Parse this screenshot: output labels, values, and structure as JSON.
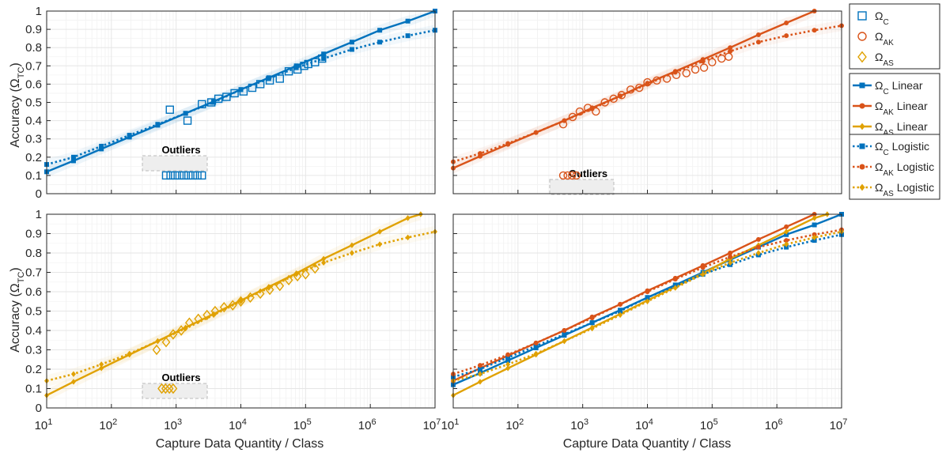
{
  "figure": {
    "xlabel": "Capture Data Quantity / Class",
    "ylabel_main": "Accuracy (Ω",
    "ylabel_sub": "TC",
    "ylabel_close": ")",
    "outliers_label": "Outliers",
    "colors": {
      "C": "#0072BD",
      "AK": "#D95319",
      "AS": "#E0A100",
      "grid": "#e6e6e6",
      "axis": "#262626"
    }
  },
  "chart_data": [
    {
      "type": "scatter",
      "panel": "top-left",
      "xscale": "log",
      "xlim": [
        10,
        10000000
      ],
      "ylim": [
        0,
        1
      ],
      "xticks": [
        {
          "base": "10",
          "exp": "1"
        },
        {
          "base": "10",
          "exp": "2"
        },
        {
          "base": "10",
          "exp": "3"
        },
        {
          "base": "10",
          "exp": "4"
        },
        {
          "base": "10",
          "exp": "5"
        },
        {
          "base": "10",
          "exp": "6"
        },
        {
          "base": "10",
          "exp": "7"
        }
      ],
      "yticks": [
        "0",
        "0.1",
        "0.2",
        "0.3",
        "0.4",
        "0.5",
        "0.6",
        "0.7",
        "0.8",
        "0.9",
        "1"
      ],
      "series": [
        {
          "name": "ΩC",
          "kind": "observed",
          "color": "#0072BD",
          "x": [
            800,
            1500,
            2500,
            3500,
            4500,
            6000,
            8000,
            11000,
            15000,
            20000,
            28000,
            40000,
            55000,
            75000,
            95000,
            110000,
            140000,
            180000
          ],
          "y": [
            0.46,
            0.4,
            0.49,
            0.5,
            0.52,
            0.53,
            0.55,
            0.56,
            0.58,
            0.6,
            0.62,
            0.63,
            0.67,
            0.68,
            0.7,
            0.71,
            0.72,
            0.74
          ]
        },
        {
          "name": "ΩC Linear",
          "kind": "linear",
          "color": "#0072BD",
          "x": [
            10,
            26,
            70,
            190,
            520,
            1400,
            3800,
            10000,
            27000,
            72000,
            190000,
            520000,
            1400000,
            3800000,
            10000000
          ],
          "y": [
            0.12,
            0.18,
            0.245,
            0.31,
            0.375,
            0.44,
            0.505,
            0.57,
            0.635,
            0.7,
            0.765,
            0.83,
            0.895,
            0.945,
            1.0
          ]
        },
        {
          "name": "ΩC Logistic",
          "kind": "logistic",
          "color": "#0072BD",
          "x": [
            10,
            26,
            70,
            190,
            520,
            1400,
            3800,
            10000,
            27000,
            72000,
            190000,
            520000,
            1400000,
            3800000,
            10000000
          ],
          "y": [
            0.16,
            0.2,
            0.26,
            0.32,
            0.38,
            0.44,
            0.5,
            0.57,
            0.63,
            0.69,
            0.74,
            0.79,
            0.83,
            0.865,
            0.895
          ]
        }
      ],
      "outliers": {
        "x_range": [
          700,
          2500
        ],
        "y": 0.1
      }
    },
    {
      "type": "scatter",
      "panel": "top-right",
      "xscale": "log",
      "xlim": [
        10,
        10000000
      ],
      "ylim": [
        0,
        1
      ],
      "xticks": [
        {
          "base": "10",
          "exp": "1"
        },
        {
          "base": "10",
          "exp": "2"
        },
        {
          "base": "10",
          "exp": "3"
        },
        {
          "base": "10",
          "exp": "4"
        },
        {
          "base": "10",
          "exp": "5"
        },
        {
          "base": "10",
          "exp": "6"
        },
        {
          "base": "10",
          "exp": "7"
        }
      ],
      "series": [
        {
          "name": "ΩAK",
          "kind": "observed",
          "color": "#D95319",
          "x": [
            500,
            700,
            900,
            1200,
            1600,
            2200,
            3000,
            4000,
            5500,
            7500,
            10000,
            14000,
            20000,
            28000,
            40000,
            55000,
            75000,
            100000,
            140000,
            180000
          ],
          "y": [
            0.38,
            0.42,
            0.45,
            0.47,
            0.45,
            0.5,
            0.52,
            0.54,
            0.57,
            0.58,
            0.61,
            0.62,
            0.63,
            0.65,
            0.66,
            0.68,
            0.69,
            0.72,
            0.74,
            0.75
          ]
        },
        {
          "name": "ΩAK Linear",
          "kind": "linear",
          "color": "#D95319",
          "x": [
            10,
            26,
            70,
            190,
            520,
            1400,
            3800,
            10000,
            27000,
            72000,
            190000,
            520000,
            1400000,
            3800000
          ],
          "y": [
            0.14,
            0.205,
            0.27,
            0.335,
            0.4,
            0.47,
            0.535,
            0.605,
            0.67,
            0.735,
            0.8,
            0.87,
            0.935,
            1.0
          ]
        },
        {
          "name": "ΩAK Logistic",
          "kind": "logistic",
          "color": "#D95319",
          "x": [
            10,
            26,
            70,
            190,
            520,
            1400,
            3800,
            10000,
            27000,
            72000,
            190000,
            520000,
            1400000,
            3800000,
            10000000
          ],
          "y": [
            0.175,
            0.22,
            0.275,
            0.335,
            0.4,
            0.465,
            0.535,
            0.6,
            0.665,
            0.725,
            0.78,
            0.83,
            0.865,
            0.895,
            0.92
          ]
        }
      ],
      "outliers": {
        "x_range": [
          500,
          800
        ],
        "y": 0.1
      }
    },
    {
      "type": "scatter",
      "panel": "bottom-left",
      "xscale": "log",
      "xlim": [
        10,
        10000000
      ],
      "ylim": [
        0,
        1
      ],
      "xticks": [
        {
          "base": "10",
          "exp": "1"
        },
        {
          "base": "10",
          "exp": "2"
        },
        {
          "base": "10",
          "exp": "3"
        },
        {
          "base": "10",
          "exp": "4"
        },
        {
          "base": "10",
          "exp": "5"
        },
        {
          "base": "10",
          "exp": "6"
        },
        {
          "base": "10",
          "exp": "7"
        }
      ],
      "yticks": [
        "0",
        "0.1",
        "0.2",
        "0.3",
        "0.4",
        "0.5",
        "0.6",
        "0.7",
        "0.8",
        "0.9",
        "1"
      ],
      "series": [
        {
          "name": "ΩAS",
          "kind": "observed",
          "color": "#E0A100",
          "x": [
            500,
            700,
            900,
            1200,
            1600,
            2200,
            3000,
            4000,
            5500,
            7500,
            10000,
            14000,
            20000,
            28000,
            40000,
            55000,
            75000,
            100000,
            140000
          ],
          "y": [
            0.3,
            0.34,
            0.38,
            0.4,
            0.44,
            0.46,
            0.48,
            0.5,
            0.52,
            0.53,
            0.55,
            0.57,
            0.59,
            0.61,
            0.63,
            0.66,
            0.68,
            0.69,
            0.72
          ]
        },
        {
          "name": "ΩAS Linear",
          "kind": "linear",
          "color": "#E0A100",
          "x": [
            10,
            26,
            70,
            190,
            520,
            1400,
            3800,
            10000,
            27000,
            72000,
            190000,
            520000,
            1400000,
            3800000,
            6000000
          ],
          "y": [
            0.065,
            0.135,
            0.205,
            0.275,
            0.345,
            0.415,
            0.485,
            0.555,
            0.625,
            0.695,
            0.77,
            0.84,
            0.91,
            0.98,
            1.0
          ]
        },
        {
          "name": "ΩAS Logistic",
          "kind": "logistic",
          "color": "#E0A100",
          "x": [
            10,
            26,
            70,
            190,
            520,
            1400,
            3800,
            10000,
            27000,
            72000,
            190000,
            520000,
            1400000,
            3800000,
            10000000
          ],
          "y": [
            0.14,
            0.175,
            0.225,
            0.28,
            0.345,
            0.41,
            0.48,
            0.55,
            0.62,
            0.69,
            0.75,
            0.8,
            0.845,
            0.88,
            0.91
          ]
        }
      ],
      "outliers": {
        "x_range": [
          600,
          900
        ],
        "y": 0.1
      }
    },
    {
      "type": "line",
      "panel": "bottom-right",
      "xscale": "log",
      "xlim": [
        10,
        10000000
      ],
      "ylim": [
        0,
        1
      ],
      "xticks": [
        {
          "base": "10",
          "exp": "1"
        },
        {
          "base": "10",
          "exp": "2"
        },
        {
          "base": "10",
          "exp": "3"
        },
        {
          "base": "10",
          "exp": "4"
        },
        {
          "base": "10",
          "exp": "5"
        },
        {
          "base": "10",
          "exp": "6"
        },
        {
          "base": "10",
          "exp": "7"
        }
      ],
      "series": [
        {
          "name": "ΩC Linear",
          "kind": "linear",
          "color": "#0072BD",
          "x": [
            10,
            26,
            70,
            190,
            520,
            1400,
            3800,
            10000,
            27000,
            72000,
            190000,
            520000,
            1400000,
            3800000,
            10000000
          ],
          "y": [
            0.12,
            0.18,
            0.245,
            0.31,
            0.375,
            0.44,
            0.505,
            0.57,
            0.635,
            0.7,
            0.765,
            0.83,
            0.895,
            0.945,
            1.0
          ]
        },
        {
          "name": "ΩAK Linear",
          "kind": "linear",
          "color": "#D95319",
          "x": [
            10,
            26,
            70,
            190,
            520,
            1400,
            3800,
            10000,
            27000,
            72000,
            190000,
            520000,
            1400000,
            3800000
          ],
          "y": [
            0.14,
            0.205,
            0.27,
            0.335,
            0.4,
            0.47,
            0.535,
            0.605,
            0.67,
            0.735,
            0.8,
            0.87,
            0.935,
            1.0
          ]
        },
        {
          "name": "ΩAS Linear",
          "kind": "linear",
          "color": "#E0A100",
          "x": [
            10,
            26,
            70,
            190,
            520,
            1400,
            3800,
            10000,
            27000,
            72000,
            190000,
            520000,
            1400000,
            3800000,
            6000000
          ],
          "y": [
            0.065,
            0.135,
            0.205,
            0.275,
            0.345,
            0.415,
            0.485,
            0.555,
            0.625,
            0.695,
            0.77,
            0.84,
            0.91,
            0.98,
            1.0
          ]
        },
        {
          "name": "ΩC Logistic",
          "kind": "logistic",
          "color": "#0072BD",
          "x": [
            10,
            26,
            70,
            190,
            520,
            1400,
            3800,
            10000,
            27000,
            72000,
            190000,
            520000,
            1400000,
            3800000,
            10000000
          ],
          "y": [
            0.16,
            0.2,
            0.26,
            0.32,
            0.38,
            0.44,
            0.5,
            0.57,
            0.63,
            0.69,
            0.74,
            0.79,
            0.83,
            0.865,
            0.895
          ]
        },
        {
          "name": "ΩAK Logistic",
          "kind": "logistic",
          "color": "#D95319",
          "x": [
            10,
            26,
            70,
            190,
            520,
            1400,
            3800,
            10000,
            27000,
            72000,
            190000,
            520000,
            1400000,
            3800000,
            10000000
          ],
          "y": [
            0.175,
            0.22,
            0.275,
            0.335,
            0.4,
            0.465,
            0.535,
            0.6,
            0.665,
            0.725,
            0.78,
            0.83,
            0.865,
            0.895,
            0.92
          ]
        },
        {
          "name": "ΩAS Logistic",
          "kind": "logistic",
          "color": "#E0A100",
          "x": [
            10,
            26,
            70,
            190,
            520,
            1400,
            3800,
            10000,
            27000,
            72000,
            190000,
            520000,
            1400000,
            3800000,
            10000000
          ],
          "y": [
            0.14,
            0.175,
            0.225,
            0.28,
            0.345,
            0.41,
            0.48,
            0.55,
            0.62,
            0.69,
            0.75,
            0.8,
            0.845,
            0.88,
            0.91
          ]
        }
      ]
    }
  ],
  "legend": {
    "position": "right",
    "groups": [
      [
        {
          "sym": "Ω",
          "sub": "C",
          "suffix": "",
          "marker": "square-open",
          "line": "none",
          "color": "#0072BD"
        },
        {
          "sym": "Ω",
          "sub": "AK",
          "suffix": "",
          "marker": "circle-open",
          "line": "none",
          "color": "#D95319"
        },
        {
          "sym": "Ω",
          "sub": "AS",
          "suffix": "",
          "marker": "diamond-open",
          "line": "none",
          "color": "#E0A100"
        }
      ],
      [
        {
          "sym": "Ω",
          "sub": "C",
          "suffix": " Linear",
          "marker": "square",
          "line": "solid",
          "color": "#0072BD"
        },
        {
          "sym": "Ω",
          "sub": "AK",
          "suffix": " Linear",
          "marker": "circle",
          "line": "solid",
          "color": "#D95319"
        },
        {
          "sym": "Ω",
          "sub": "AS",
          "suffix": " Linear",
          "marker": "diamond",
          "line": "solid",
          "color": "#E0A100"
        }
      ],
      [
        {
          "sym": "Ω",
          "sub": "C",
          "suffix": " Logistic",
          "marker": "square",
          "line": "dotted",
          "color": "#0072BD"
        },
        {
          "sym": "Ω",
          "sub": "AK",
          "suffix": " Logistic",
          "marker": "circle",
          "line": "dotted",
          "color": "#D95319"
        },
        {
          "sym": "Ω",
          "sub": "AS",
          "suffix": " Logistic",
          "marker": "diamond",
          "line": "dotted",
          "color": "#E0A100"
        }
      ]
    ]
  }
}
